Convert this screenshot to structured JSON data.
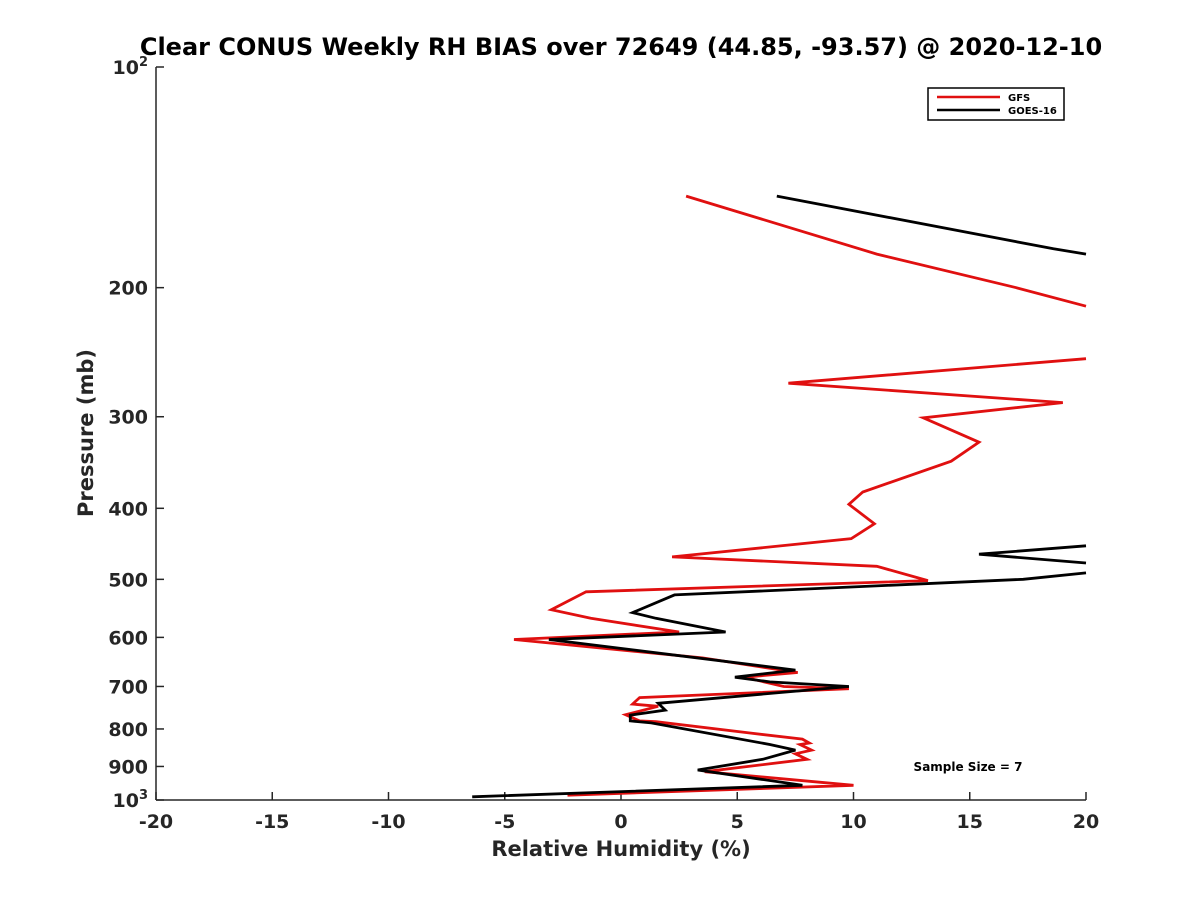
{
  "chart_data": {
    "type": "line",
    "title": "Clear CONUS Weekly RH BIAS over 72649 (44.85, -93.57) @ 2020-12-10",
    "xlabel": "Relative Humidity (%)",
    "ylabel": "Pressure (mb)",
    "xlim": [
      -20,
      20
    ],
    "ylim": [
      100,
      1000
    ],
    "yscale": "log",
    "y_reversed": true,
    "grid": false,
    "legend_position": "top-right",
    "x_ticks": [
      "-20",
      "-15",
      "-10",
      "-5",
      "0",
      "5",
      "10",
      "15",
      "20"
    ],
    "y_ticks": [
      {
        "value": 100,
        "base": "10",
        "exp": "2"
      },
      {
        "value": 200,
        "label": "200"
      },
      {
        "value": 300,
        "label": "300"
      },
      {
        "value": 400,
        "label": "400"
      },
      {
        "value": 500,
        "label": "500"
      },
      {
        "value": 600,
        "label": "600"
      },
      {
        "value": 700,
        "label": "700"
      },
      {
        "value": 800,
        "label": "800"
      },
      {
        "value": 900,
        "label": "900"
      },
      {
        "value": 1000,
        "base": "10",
        "exp": "3"
      }
    ],
    "annotation": "Sample Size = 7",
    "series": [
      {
        "name": "GFS",
        "color": "#e01010",
        "segments": [
          [
            [
              2.8,
              150
            ],
            [
              11,
              180
            ],
            [
              17,
              200
            ],
            [
              20,
              212
            ]
          ],
          [
            [
              20,
              250
            ],
            [
              7.2,
              270
            ],
            [
              19,
              287
            ],
            [
              13,
              301
            ],
            [
              15.4,
              325
            ],
            [
              14.2,
              345
            ],
            [
              10.4,
              380
            ],
            [
              9.8,
              395
            ],
            [
              10.9,
              420
            ],
            [
              9.9,
              440
            ],
            [
              2.2,
              466
            ],
            [
              11,
              480
            ],
            [
              13.2,
              502
            ],
            [
              -1.5,
              520
            ],
            [
              -3,
              550
            ],
            [
              -1.3,
              565
            ],
            [
              2.5,
              590
            ],
            [
              -4.6,
              604
            ],
            [
              3.5,
              640
            ],
            [
              7.6,
              670
            ],
            [
              5.3,
              680
            ],
            [
              7,
              700
            ],
            [
              9.8,
              705
            ],
            [
              0.8,
              725
            ],
            [
              0.5,
              740
            ],
            [
              1.6,
              745
            ],
            [
              0.2,
              765
            ],
            [
              0.8,
              780
            ],
            [
              1.5,
              782
            ],
            [
              5.5,
              810
            ],
            [
              7.8,
              826
            ],
            [
              8.1,
              836
            ],
            [
              7.7,
              840
            ],
            [
              8.2,
              855
            ],
            [
              7.5,
              865
            ],
            [
              8,
              880
            ],
            [
              3.6,
              915
            ],
            [
              10,
              955
            ],
            [
              -2.3,
              985
            ]
          ]
        ]
      },
      {
        "name": "GOES-16",
        "color": "#000000",
        "segments": [
          [
            [
              6.7,
              150
            ],
            [
              18.6,
              177
            ],
            [
              20,
              180
            ]
          ],
          [
            [
              20,
              450
            ],
            [
              15.4,
              462
            ],
            [
              20,
              475
            ]
          ],
          [
            [
              20,
              490
            ],
            [
              17.3,
              500
            ],
            [
              2.3,
              525
            ],
            [
              0.5,
              555
            ],
            [
              1.5,
              565
            ],
            [
              4.5,
              590
            ],
            [
              -3.1,
              604
            ],
            [
              7.5,
              665
            ],
            [
              4.9,
              680
            ],
            [
              6.4,
              690
            ],
            [
              9.8,
              700
            ],
            [
              1.6,
              738
            ],
            [
              1.9,
              754
            ],
            [
              0.4,
              766
            ],
            [
              0.4,
              780
            ],
            [
              1.3,
              785
            ],
            [
              6.4,
              840
            ],
            [
              7.5,
              855
            ],
            [
              6.1,
              880
            ],
            [
              3.3,
              910
            ],
            [
              7.8,
              955
            ],
            [
              -6.4,
              990
            ]
          ]
        ]
      }
    ]
  }
}
